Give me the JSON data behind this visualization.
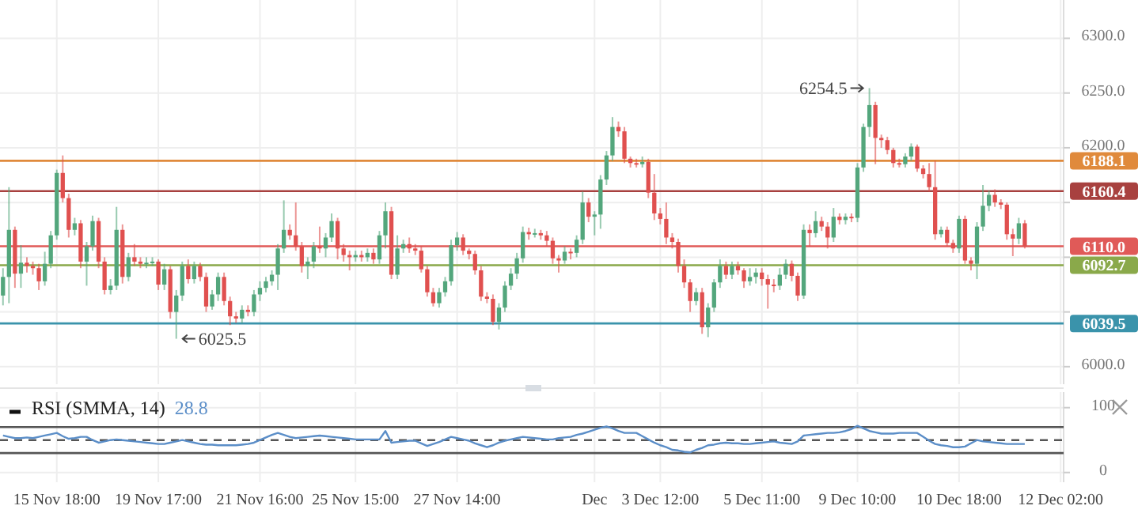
{
  "chart_data": [
    {
      "type": "candlestick",
      "tick_labels": "y",
      "grid": true,
      "categories": [
        null,
        null,
        null,
        null,
        null,
        null,
        null,
        null,
        null,
        null,
        null,
        null,
        null,
        null,
        null,
        null,
        null,
        null,
        null,
        null,
        null,
        null,
        null,
        null,
        null,
        null,
        null,
        null,
        null,
        null,
        null,
        null,
        null,
        null,
        null,
        null,
        null,
        null,
        null,
        null,
        null,
        null,
        null,
        null,
        null,
        null,
        null,
        null,
        null,
        null,
        null,
        null,
        null,
        null,
        null,
        null,
        null,
        null,
        null,
        null,
        null,
        null,
        null,
        null,
        null,
        null,
        null,
        null,
        null,
        null,
        null,
        null,
        null,
        null,
        null,
        null,
        null,
        null,
        null,
        null,
        null,
        null,
        null,
        null,
        null,
        null,
        null,
        null,
        null,
        null,
        null,
        null,
        null,
        null,
        null,
        null,
        null,
        null,
        null,
        null,
        null,
        null,
        null,
        null,
        null,
        null,
        null,
        null,
        null,
        null,
        null,
        null,
        null,
        null,
        null,
        null,
        null,
        null,
        null,
        null,
        null,
        null,
        null,
        null,
        null,
        null,
        null,
        null,
        null,
        null,
        null,
        null,
        null,
        null,
        null,
        null,
        null,
        null,
        null,
        null,
        null,
        null,
        null,
        null,
        null,
        null,
        null,
        null,
        null,
        null,
        null,
        null,
        null,
        null,
        null,
        null,
        null,
        null,
        null,
        null,
        null,
        null,
        null,
        null,
        null,
        null,
        null,
        null,
        null,
        null,
        null,
        null,
        null,
        null,
        null,
        null,
        null,
        null
      ],
      "ohlc": [
        [
          6065,
          6090,
          6056,
          6082
        ],
        [
          6082,
          6164,
          6058,
          6125
        ],
        [
          6125,
          6128,
          6072,
          6085
        ],
        [
          6085,
          6111,
          6072,
          6095
        ],
        [
          6095,
          6100,
          6086,
          6092
        ],
        [
          6092,
          6096,
          6084,
          6090
        ],
        [
          6090,
          6094,
          6070,
          6078
        ],
        [
          6078,
          6105,
          6074,
          6094
        ],
        [
          6094,
          6124,
          6090,
          6120
        ],
        [
          6120,
          6180,
          6116,
          6177
        ],
        [
          6177,
          6193,
          6150,
          6154
        ],
        [
          6154,
          6158,
          6118,
          6125
        ],
        [
          6125,
          6136,
          6120,
          6131
        ],
        [
          6131,
          6134,
          6090,
          6096
        ],
        [
          6096,
          6114,
          6074,
          6110
        ],
        [
          6110,
          6138,
          6106,
          6133
        ],
        [
          6133,
          6136,
          6090,
          6096
        ],
        [
          6096,
          6100,
          6066,
          6070
        ],
        [
          6070,
          6080,
          6066,
          6074
        ],
        [
          6074,
          6146,
          6070,
          6125
        ],
        [
          6125,
          6130,
          6076,
          6082
        ],
        [
          6082,
          6104,
          6078,
          6100
        ],
        [
          6100,
          6112,
          6092,
          6096
        ],
        [
          6096,
          6100,
          6090,
          6094
        ],
        [
          6094,
          6100,
          6090,
          6095
        ],
        [
          6095,
          6100,
          6092,
          6096
        ],
        [
          6096,
          6098,
          6070,
          6075
        ],
        [
          6075,
          6094,
          6070,
          6089
        ],
        [
          6089,
          6092,
          6044,
          6050
        ],
        [
          6050,
          6070,
          6025.5,
          6065
        ],
        [
          6065,
          6096,
          6060,
          6092
        ],
        [
          6092,
          6098,
          6076,
          6080
        ],
        [
          6080,
          6096,
          6076,
          6092
        ],
        [
          6092,
          6095,
          6078,
          6082
        ],
        [
          6082,
          6086,
          6050,
          6055
        ],
        [
          6055,
          6070,
          6052,
          6066
        ],
        [
          6066,
          6086,
          6060,
          6082
        ],
        [
          6082,
          6086,
          6056,
          6060
        ],
        [
          6060,
          6064,
          6038,
          6046
        ],
        [
          6046,
          6050,
          6040,
          6044
        ],
        [
          6044,
          6056,
          6040,
          6052
        ],
        [
          6052,
          6056,
          6046,
          6050
        ],
        [
          6050,
          6070,
          6046,
          6066
        ],
        [
          6066,
          6078,
          6060,
          6072
        ],
        [
          6072,
          6082,
          6068,
          6078
        ],
        [
          6078,
          6088,
          6074,
          6084
        ],
        [
          6084,
          6112,
          6070,
          6108
        ],
        [
          6108,
          6152,
          6104,
          6125
        ],
        [
          6125,
          6130,
          6116,
          6120
        ],
        [
          6120,
          6150,
          6106,
          6110
        ],
        [
          6110,
          6114,
          6086,
          6092
        ],
        [
          6092,
          6100,
          6080,
          6096
        ],
        [
          6096,
          6114,
          6090,
          6110
        ],
        [
          6110,
          6128,
          6104,
          6108
        ],
        [
          6108,
          6122,
          6100,
          6118
        ],
        [
          6118,
          6140,
          6114,
          6133
        ],
        [
          6133,
          6136,
          6098,
          6108
        ],
        [
          6108,
          6112,
          6096,
          6102
        ],
        [
          6102,
          6106,
          6088,
          6100
        ],
        [
          6100,
          6106,
          6096,
          6102
        ],
        [
          6102,
          6106,
          6096,
          6100
        ],
        [
          6100,
          6108,
          6096,
          6104
        ],
        [
          6104,
          6108,
          6094,
          6098
        ],
        [
          6098,
          6124,
          6094,
          6120
        ],
        [
          6120,
          6150,
          6108,
          6142
        ],
        [
          6142,
          6146,
          6080,
          6084
        ],
        [
          6084,
          6120,
          6080,
          6108
        ],
        [
          6108,
          6116,
          6104,
          6112
        ],
        [
          6112,
          6118,
          6104,
          6108
        ],
        [
          6108,
          6112,
          6102,
          6106
        ],
        [
          6106,
          6110,
          6086,
          6089
        ],
        [
          6089,
          6092,
          6064,
          6068
        ],
        [
          6068,
          6072,
          6055,
          6058
        ],
        [
          6058,
          6072,
          6054,
          6068
        ],
        [
          6068,
          6082,
          6064,
          6078
        ],
        [
          6078,
          6116,
          6074,
          6111
        ],
        [
          6111,
          6123,
          6106,
          6118
        ],
        [
          6118,
          6121,
          6102,
          6106
        ],
        [
          6106,
          6108,
          6098,
          6103
        ],
        [
          6103,
          6106,
          6084,
          6088
        ],
        [
          6088,
          6092,
          6060,
          6064
        ],
        [
          6064,
          6068,
          6058,
          6062
        ],
        [
          6062,
          6066,
          6038,
          6041
        ],
        [
          6041,
          6058,
          6034,
          6054
        ],
        [
          6054,
          6078,
          6050,
          6074
        ],
        [
          6074,
          6090,
          6070,
          6085
        ],
        [
          6085,
          6104,
          6080,
          6099
        ],
        [
          6099,
          6128,
          6095,
          6123
        ],
        [
          6123,
          6127,
          6116,
          6121
        ],
        [
          6121,
          6126,
          6118,
          6122
        ],
        [
          6122,
          6125,
          6116,
          6120
        ],
        [
          6120,
          6124,
          6110,
          6115
        ],
        [
          6115,
          6118,
          6094,
          6099
        ],
        [
          6099,
          6102,
          6086,
          6097
        ],
        [
          6097,
          6110,
          6094,
          6105
        ],
        [
          6105,
          6108,
          6098,
          6104
        ],
        [
          6104,
          6120,
          6100,
          6116
        ],
        [
          6116,
          6160,
          6112,
          6150
        ],
        [
          6150,
          6154,
          6132,
          6137
        ],
        [
          6137,
          6142,
          6120,
          6139
        ],
        [
          6139,
          6175,
          6126,
          6171
        ],
        [
          6171,
          6197,
          6166,
          6193
        ],
        [
          6193,
          6228,
          6188,
          6219
        ],
        [
          6219,
          6224,
          6210,
          6215
        ],
        [
          6215,
          6219,
          6186,
          6190
        ],
        [
          6190,
          6192,
          6182,
          6186
        ],
        [
          6186,
          6190,
          6182,
          6185
        ],
        [
          6185,
          6192,
          6182,
          6187
        ],
        [
          6187,
          6190,
          6154,
          6159
        ],
        [
          6159,
          6176,
          6134,
          6140
        ],
        [
          6140,
          6145,
          6130,
          6135
        ],
        [
          6135,
          6150,
          6112,
          6118
        ],
        [
          6118,
          6122,
          6108,
          6114
        ],
        [
          6114,
          6117,
          6086,
          6092
        ],
        [
          6092,
          6098,
          6072,
          6077
        ],
        [
          6077,
          6080,
          6050,
          6060
        ],
        [
          6060,
          6072,
          6056,
          6068
        ],
        [
          6068,
          6072,
          6030,
          6036
        ],
        [
          6036,
          6058,
          6027,
          6054
        ],
        [
          6054,
          6080,
          6050,
          6077
        ],
        [
          6077,
          6098,
          6072,
          6092
        ],
        [
          6092,
          6096,
          6080,
          6084
        ],
        [
          6084,
          6096,
          6080,
          6092
        ],
        [
          6092,
          6096,
          6084,
          6088
        ],
        [
          6088,
          6090,
          6072,
          6078
        ],
        [
          6078,
          6090,
          6074,
          6082
        ],
        [
          6082,
          6090,
          6076,
          6086
        ],
        [
          6086,
          6090,
          6074,
          6080
        ],
        [
          6080,
          6084,
          6053,
          6075
        ],
        [
          6075,
          6080,
          6068,
          6074
        ],
        [
          6074,
          6090,
          6070,
          6084
        ],
        [
          6084,
          6098,
          6080,
          6094
        ],
        [
          6094,
          6097,
          6078,
          6083
        ],
        [
          6083,
          6086,
          6060,
          6065
        ],
        [
          6065,
          6130,
          6062,
          6125
        ],
        [
          6125,
          6130,
          6110,
          6122
        ],
        [
          6122,
          6142,
          6118,
          6133
        ],
        [
          6133,
          6137,
          6124,
          6128
        ],
        [
          6128,
          6132,
          6108,
          6118
        ],
        [
          6118,
          6145,
          6114,
          6137
        ],
        [
          6137,
          6140,
          6130,
          6134
        ],
        [
          6134,
          6140,
          6130,
          6137
        ],
        [
          6137,
          6140,
          6132,
          6136
        ],
        [
          6136,
          6186,
          6132,
          6182
        ],
        [
          6182,
          6222,
          6178,
          6219
        ],
        [
          6219,
          6254.5,
          6210,
          6239
        ],
        [
          6239,
          6242,
          6185,
          6209
        ],
        [
          6209,
          6212,
          6200,
          6207
        ],
        [
          6207,
          6210,
          6194,
          6198
        ],
        [
          6198,
          6200,
          6182,
          6186
        ],
        [
          6186,
          6190,
          6182,
          6185
        ],
        [
          6185,
          6195,
          6182,
          6192
        ],
        [
          6192,
          6204,
          6188,
          6201
        ],
        [
          6201,
          6203,
          6178,
          6181
        ],
        [
          6181,
          6184,
          6172,
          6176
        ],
        [
          6176,
          6186,
          6160,
          6164
        ],
        [
          6164,
          6188,
          6116,
          6121
        ],
        [
          6121,
          6128,
          6118,
          6125
        ],
        [
          6125,
          6128,
          6110,
          6113
        ],
        [
          6113,
          6116,
          6104,
          6108
        ],
        [
          6108,
          6138,
          6104,
          6135
        ],
        [
          6135,
          6138,
          6094,
          6097
        ],
        [
          6097,
          6100,
          6088,
          6094
        ],
        [
          6094,
          6132,
          6080,
          6128
        ],
        [
          6128,
          6166,
          6124,
          6147
        ],
        [
          6147,
          6161,
          6142,
          6157
        ],
        [
          6157,
          6162,
          6146,
          6150
        ],
        [
          6150,
          6153,
          6144,
          6148
        ],
        [
          6148,
          6150,
          6116,
          6121
        ],
        [
          6121,
          6126,
          6101,
          6117
        ],
        [
          6117,
          6136,
          6112,
          6131
        ],
        [
          6131,
          6134,
          6108,
          6110
        ],
        null,
        null,
        null,
        null,
        null,
        null
      ],
      "ylim": [
        5984,
        6335
      ],
      "yticks": [
        {
          "value": 6000,
          "label": "6000.0"
        },
        {
          "value": 6050,
          "label": null
        },
        {
          "value": 6100,
          "label": null
        },
        {
          "value": 6150,
          "label": null
        },
        {
          "value": 6200,
          "label": "6200.0"
        },
        {
          "value": 6250,
          "label": "6250.0"
        },
        {
          "value": 6300,
          "label": "6300.0"
        }
      ],
      "ref_lines": [
        {
          "axis": "y",
          "value": 6188.1,
          "label": "6188.1",
          "color": "#e08a3c"
        },
        {
          "axis": "y",
          "value": 6160.4,
          "label": "6160.4",
          "color": "#a8413f"
        },
        {
          "axis": "y",
          "value": 6110.0,
          "label": "6110.0",
          "color": "#e05a58"
        },
        {
          "axis": "y",
          "value": 6092.7,
          "label": "6092.7",
          "color": "#8aa94a"
        },
        {
          "axis": "y",
          "value": 6039.5,
          "label": "6039.5",
          "color": "#3a93ab"
        }
      ],
      "annotations": [
        "6254.5",
        "6025.5"
      ]
    },
    {
      "type": "line",
      "title": "RSI (SMMA, 14)",
      "grid": true,
      "categories": [
        null,
        null,
        null,
        null,
        null,
        null,
        null,
        null,
        null,
        "15 Nov 18:00",
        null,
        null,
        null,
        null,
        null,
        null,
        null,
        null,
        null,
        null,
        null,
        null,
        null,
        null,
        null,
        null,
        "19 Nov 17:00",
        null,
        null,
        null,
        null,
        null,
        null,
        null,
        null,
        null,
        null,
        null,
        null,
        null,
        null,
        null,
        null,
        "21 Nov 16:00",
        null,
        null,
        null,
        null,
        null,
        null,
        null,
        null,
        null,
        null,
        null,
        null,
        null,
        null,
        null,
        "25 Nov 15:00",
        null,
        null,
        null,
        null,
        null,
        null,
        null,
        null,
        null,
        null,
        null,
        null,
        null,
        null,
        null,
        null,
        "27 Nov 14:00",
        null,
        null,
        null,
        null,
        null,
        null,
        null,
        null,
        null,
        null,
        null,
        null,
        null,
        null,
        null,
        null,
        null,
        null,
        null,
        null,
        null,
        null,
        "Dec",
        null,
        null,
        null,
        null,
        null,
        null,
        null,
        null,
        null,
        null,
        "3 Dec 12:00",
        null,
        null,
        null,
        null,
        null,
        null,
        null,
        null,
        null,
        null,
        null,
        null,
        null,
        null,
        null,
        null,
        "5 Dec 11:00",
        null,
        null,
        null,
        null,
        null,
        null,
        null,
        null,
        null,
        null,
        null,
        null,
        null,
        null,
        null,
        "9 Dec 10:00",
        null,
        null,
        null,
        null,
        null,
        null,
        null,
        null,
        null,
        null,
        null,
        null,
        null,
        null,
        null,
        null,
        "10 Dec 18:00",
        null,
        null,
        null,
        null,
        null,
        null,
        null,
        null,
        null,
        null,
        null,
        null,
        null,
        null,
        null,
        null,
        "12 Dec 02:00"
      ],
      "series": [
        {
          "color": "#5b8ec8",
          "values": [
            57,
            55,
            53,
            53,
            54,
            53,
            55,
            57,
            59,
            61,
            56,
            52,
            53,
            55,
            55,
            50,
            46,
            48,
            50,
            51,
            50,
            49,
            48,
            47,
            46,
            45,
            44,
            44,
            46,
            48,
            50,
            48,
            46,
            44,
            43,
            43,
            42,
            42,
            42,
            42,
            43,
            44,
            46,
            50,
            54,
            58,
            61,
            58,
            55,
            53,
            54,
            55,
            56,
            57,
            56,
            55,
            54,
            53,
            52,
            51,
            51,
            51,
            51,
            51,
            64,
            46,
            47,
            48,
            49,
            49,
            45,
            41,
            44,
            47,
            51,
            55,
            53,
            51,
            49,
            45,
            42,
            39,
            42,
            46,
            49,
            51,
            53,
            55,
            54,
            53,
            52,
            51,
            51,
            53,
            54,
            55,
            58,
            60,
            63,
            66,
            69,
            71,
            68,
            64,
            61,
            61,
            61,
            56,
            51,
            46,
            42,
            39,
            35,
            34,
            32,
            31,
            35,
            38,
            42,
            43,
            45,
            46,
            45,
            45,
            44,
            44,
            45,
            46,
            47,
            48,
            46,
            45,
            44,
            48,
            57,
            58,
            59,
            60,
            61,
            61,
            62,
            64,
            67,
            72,
            68,
            64,
            62,
            60,
            60,
            60,
            61,
            61,
            61,
            61,
            55,
            49,
            44,
            42,
            41,
            39,
            39,
            40,
            45,
            50,
            48,
            47,
            46,
            45,
            44,
            44,
            44,
            44,
            null,
            null,
            null,
            null,
            null,
            null
          ]
        }
      ],
      "ylim": [
        -15,
        124
      ],
      "yticks": [
        0,
        100
      ],
      "ref_lines": [
        {
          "axis": "y",
          "value": 70,
          "color": "#555555",
          "line_style": "solid"
        },
        {
          "axis": "y",
          "value": 50,
          "color": "#555555",
          "line_style": "dashed"
        },
        {
          "axis": "y",
          "value": 30,
          "color": "#555555",
          "line_style": "solid"
        }
      ],
      "annotations": [
        "28.8"
      ]
    }
  ]
}
